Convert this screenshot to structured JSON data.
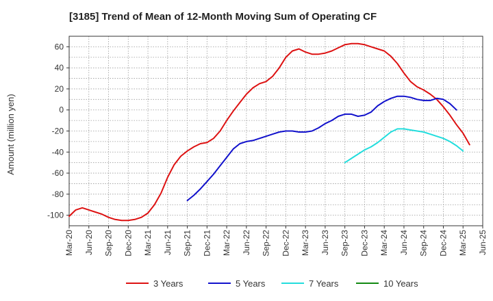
{
  "chart_data": {
    "type": "line",
    "title": "[3185]  Trend of Mean of 12-Month Moving Sum of Operating CF",
    "xlabel": "",
    "ylabel": "Amount (million yen)",
    "ylim": [
      -110,
      70
    ],
    "yticks": [
      60,
      40,
      20,
      0,
      -20,
      -40,
      -60,
      -80,
      -100
    ],
    "x_start": "Mar-20",
    "x_end": "Jun-25",
    "x_month_span": 63,
    "xticks": [
      "Mar-20",
      "Jun-20",
      "Sep-20",
      "Dec-20",
      "Mar-21",
      "Jun-21",
      "Sep-21",
      "Dec-21",
      "Mar-22",
      "Jun-22",
      "Sep-22",
      "Dec-22",
      "Mar-23",
      "Jun-23",
      "Sep-23",
      "Dec-23",
      "Mar-24",
      "Jun-24",
      "Sep-24",
      "Dec-24",
      "Mar-25",
      "Jun-25"
    ],
    "grid": true,
    "legend_position": "bottom",
    "series": [
      {
        "name": "3 Years",
        "color": "#dd1111",
        "start_index": 0,
        "values": [
          -101,
          -95,
          -93,
          -95,
          -97,
          -99,
          -102,
          -104,
          -105,
          -105,
          -104,
          -102,
          -98,
          -90,
          -79,
          -64,
          -52,
          -44,
          -39,
          -35,
          -32,
          -31,
          -27,
          -20,
          -10,
          -1,
          7,
          15,
          21,
          25,
          27,
          32,
          40,
          50,
          56,
          58,
          55,
          53,
          53,
          54,
          56,
          59,
          62,
          63,
          63,
          62,
          60,
          58,
          56,
          51,
          44,
          35,
          27,
          22,
          19,
          15,
          10,
          3,
          -5,
          -14,
          -22,
          -33
        ],
        "labels": {
          "name": "3 Years"
        }
      },
      {
        "name": "5 Years",
        "color": "#1111cc",
        "start_index": 18,
        "values": [
          -86,
          -81,
          -75,
          -68,
          -61,
          -53,
          -45,
          -37,
          -32,
          -30,
          -29,
          -27,
          -25,
          -23,
          -21,
          -20,
          -20,
          -21,
          -21,
          -20,
          -17,
          -13,
          -10,
          -6,
          -4,
          -4,
          -6,
          -5,
          -2,
          4,
          8,
          11,
          13,
          13,
          12,
          10,
          9,
          9,
          11,
          10,
          6,
          0
        ]
      },
      {
        "name": "7 Years",
        "color": "#22dddd",
        "start_index": 42,
        "values": [
          -50,
          -46,
          -42,
          -38,
          -35,
          -31,
          -26,
          -21,
          -18,
          -18,
          -19,
          -20,
          -21,
          -23,
          -25,
          -27,
          -30,
          -34,
          -39
        ]
      },
      {
        "name": "10 Years",
        "color": "#118811",
        "start_index": 0,
        "values": []
      }
    ]
  }
}
